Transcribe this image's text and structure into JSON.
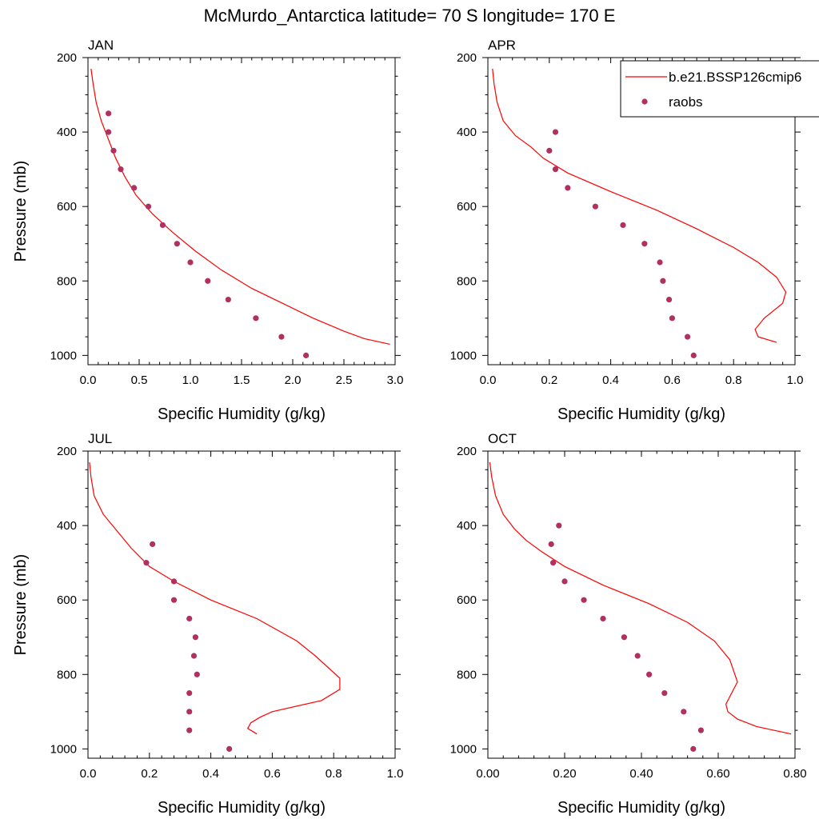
{
  "title": "McMurdo_Antarctica  latitude= 70 S longitude= 170 E",
  "colors": {
    "model": "#ff0000",
    "obs": "#b03060",
    "axis": "#000000"
  },
  "legend": {
    "model_label": "b.e21.BSSP126cmip6",
    "obs_label": "raobs",
    "placement": "top-right of APR panel"
  },
  "chart_data": [
    {
      "type": "line",
      "panel_label": "JAN",
      "xlabel": "Specific Humidity (g/kg)",
      "ylabel": "Pressure (mb)",
      "xlim": [
        0,
        3.0
      ],
      "ylim": [
        200,
        1025
      ],
      "y_reversed": true,
      "xticks": [
        "0.0",
        "0.5",
        "1.0",
        "1.5",
        "2.0",
        "2.5",
        "3.0"
      ],
      "xtick_values": [
        0,
        0.5,
        1.0,
        1.5,
        2.0,
        2.5,
        3.0
      ],
      "yticks": [
        "200",
        "400",
        "600",
        "800",
        "1000"
      ],
      "ytick_values": [
        200,
        400,
        600,
        800,
        1000
      ],
      "series": [
        {
          "name": "b.e21.BSSP126cmip6",
          "kind": "line",
          "x": [
            0.03,
            0.05,
            0.08,
            0.13,
            0.2,
            0.27,
            0.36,
            0.47,
            0.63,
            0.83,
            1.05,
            1.3,
            1.6,
            1.9,
            2.2,
            2.5,
            2.7,
            2.95
          ],
          "y": [
            230,
            270,
            320,
            370,
            420,
            470,
            520,
            570,
            620,
            670,
            720,
            770,
            820,
            860,
            900,
            935,
            955,
            970
          ]
        },
        {
          "name": "raobs",
          "kind": "scatter",
          "x": [
            0.2,
            0.2,
            0.25,
            0.32,
            0.45,
            0.59,
            0.73,
            0.87,
            1.0,
            1.17,
            1.37,
            1.64,
            1.89,
            2.13
          ],
          "y": [
            350,
            400,
            450,
            500,
            550,
            600,
            650,
            700,
            750,
            800,
            850,
            900,
            950,
            1000
          ]
        }
      ]
    },
    {
      "type": "line",
      "panel_label": "APR",
      "xlabel": "Specific Humidity (g/kg)",
      "ylabel": "",
      "xlim": [
        0,
        1.0
      ],
      "ylim": [
        200,
        1025
      ],
      "y_reversed": true,
      "xticks": [
        "0.0",
        "0.2",
        "0.4",
        "0.6",
        "0.8",
        "1.0"
      ],
      "xtick_values": [
        0,
        0.2,
        0.4,
        0.6,
        0.8,
        1.0
      ],
      "yticks": [
        "200",
        "400",
        "600",
        "800",
        "1000"
      ],
      "ytick_values": [
        200,
        400,
        600,
        800,
        1000
      ],
      "series": [
        {
          "name": "b.e21.BSSP126cmip6",
          "kind": "line",
          "x": [
            0.015,
            0.02,
            0.03,
            0.05,
            0.09,
            0.14,
            0.18,
            0.26,
            0.4,
            0.55,
            0.68,
            0.8,
            0.88,
            0.94,
            0.97,
            0.96,
            0.9,
            0.87,
            0.88,
            0.94
          ],
          "y": [
            230,
            270,
            320,
            370,
            410,
            440,
            470,
            510,
            560,
            610,
            660,
            710,
            750,
            790,
            830,
            860,
            900,
            930,
            950,
            965
          ]
        },
        {
          "name": "raobs",
          "kind": "scatter",
          "x": [
            0.22,
            0.2,
            0.22,
            0.26,
            0.35,
            0.44,
            0.51,
            0.56,
            0.57,
            0.59,
            0.6,
            0.65,
            0.67
          ],
          "y": [
            400,
            450,
            500,
            550,
            600,
            650,
            700,
            750,
            800,
            850,
            900,
            950,
            1000
          ]
        }
      ]
    },
    {
      "type": "line",
      "panel_label": "JUL",
      "xlabel": "Specific Humidity (g/kg)",
      "ylabel": "Pressure (mb)",
      "xlim": [
        0,
        1.0
      ],
      "ylim": [
        200,
        1025
      ],
      "y_reversed": true,
      "xticks": [
        "0.0",
        "0.2",
        "0.4",
        "0.6",
        "0.8",
        "1.0"
      ],
      "xtick_values": [
        0,
        0.2,
        0.4,
        0.6,
        0.8,
        1.0
      ],
      "yticks": [
        "200",
        "400",
        "600",
        "800",
        "1000"
      ],
      "ytick_values": [
        200,
        400,
        600,
        800,
        1000
      ],
      "series": [
        {
          "name": "b.e21.BSSP126cmip6",
          "kind": "line",
          "x": [
            0.005,
            0.01,
            0.02,
            0.05,
            0.1,
            0.14,
            0.2,
            0.28,
            0.4,
            0.55,
            0.68,
            0.74,
            0.82,
            0.82,
            0.76,
            0.6,
            0.56,
            0.53,
            0.52,
            0.55
          ],
          "y": [
            230,
            270,
            320,
            370,
            420,
            460,
            510,
            550,
            600,
            650,
            710,
            750,
            810,
            840,
            870,
            900,
            915,
            930,
            945,
            960
          ]
        },
        {
          "name": "raobs",
          "kind": "scatter",
          "x": [
            0.21,
            0.19,
            0.28,
            0.28,
            0.33,
            0.35,
            0.345,
            0.355,
            0.33,
            0.33,
            0.33,
            0.46
          ],
          "y": [
            450,
            500,
            550,
            600,
            650,
            700,
            750,
            800,
            850,
            900,
            950,
            1000
          ]
        }
      ]
    },
    {
      "type": "line",
      "panel_label": "OCT",
      "xlabel": "Specific Humidity (g/kg)",
      "ylabel": "",
      "xlim": [
        0,
        0.8
      ],
      "ylim": [
        200,
        1025
      ],
      "y_reversed": true,
      "xticks": [
        "0.00",
        "0.20",
        "0.40",
        "0.60",
        "0.80"
      ],
      "xtick_values": [
        0,
        0.2,
        0.4,
        0.6,
        0.8
      ],
      "yticks": [
        "200",
        "400",
        "600",
        "800",
        "1000"
      ],
      "ytick_values": [
        200,
        400,
        600,
        800,
        1000
      ],
      "series": [
        {
          "name": "b.e21.BSSP126cmip6",
          "kind": "line",
          "x": [
            0.005,
            0.01,
            0.02,
            0.04,
            0.07,
            0.1,
            0.14,
            0.2,
            0.3,
            0.42,
            0.52,
            0.59,
            0.63,
            0.65,
            0.62,
            0.625,
            0.65,
            0.7,
            0.79
          ],
          "y": [
            230,
            270,
            320,
            370,
            410,
            440,
            470,
            510,
            560,
            610,
            660,
            710,
            760,
            820,
            880,
            900,
            920,
            940,
            960
          ]
        },
        {
          "name": "raobs",
          "kind": "scatter",
          "x": [
            0.185,
            0.165,
            0.17,
            0.2,
            0.25,
            0.3,
            0.355,
            0.39,
            0.42,
            0.46,
            0.51,
            0.555,
            0.535
          ],
          "y": [
            400,
            450,
            500,
            550,
            600,
            650,
            700,
            750,
            800,
            850,
            900,
            950,
            1000
          ]
        }
      ]
    }
  ]
}
